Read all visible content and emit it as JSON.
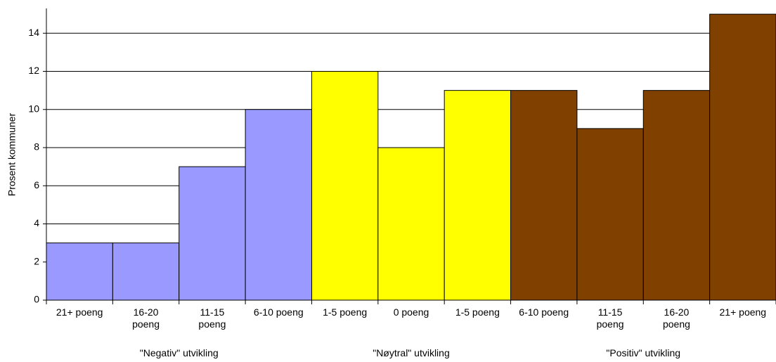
{
  "chart_data": {
    "type": "bar",
    "y_label": "Prosent kommuner",
    "categories": [
      "21+ poeng",
      "16-20\npoeng",
      "11-15\npoeng",
      "6-10 poeng",
      "1-5 poeng",
      "0 poeng",
      "1-5 poeng",
      "6-10 poeng",
      "11-15\npoeng",
      "16-20\npoeng",
      "21+ poeng"
    ],
    "values": [
      3,
      3,
      7,
      10,
      12,
      8,
      11,
      11,
      9,
      11,
      15
    ],
    "colors": [
      "#9999ff",
      "#9999ff",
      "#9999ff",
      "#9999ff",
      "#ffff00",
      "#ffff00",
      "#ffff00",
      "#804000",
      "#804000",
      "#804000",
      "#804000"
    ],
    "groups": [
      "\"Negativ\" utvikling",
      "\"Nøytral\" utvikling",
      "\"Positiv\" utvikling"
    ],
    "ylim": [
      0,
      15.3
    ],
    "yticks": [
      0,
      2,
      4,
      6,
      8,
      10,
      12,
      14
    ],
    "grid": true
  }
}
